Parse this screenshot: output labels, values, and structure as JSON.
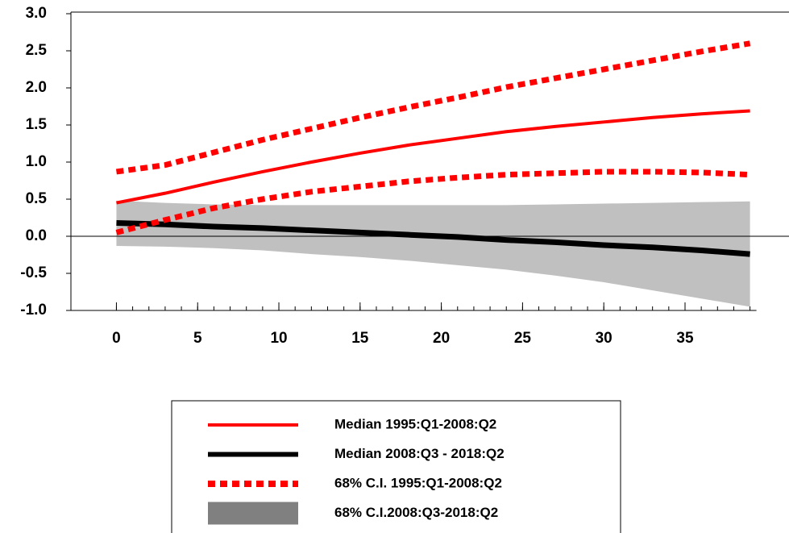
{
  "chart_data": {
    "type": "line",
    "x": [
      0,
      3,
      6,
      9,
      12,
      15,
      18,
      21,
      24,
      27,
      30,
      33,
      36,
      39
    ],
    "xlim": [
      -2.8,
      41.4
    ],
    "xticks": [
      0,
      5,
      10,
      15,
      20,
      25,
      30,
      35
    ],
    "ylim": [
      -1,
      3
    ],
    "yticks": [
      {
        "value": -1,
        "label": "-1.0"
      },
      -0.5,
      {
        "value": 0,
        "label": "0.0"
      },
      0.5,
      {
        "value": 1,
        "label": "1.0"
      },
      1.5,
      {
        "value": 2,
        "label": "2.0"
      },
      2.5,
      {
        "value": 3,
        "label": "3.0"
      }
    ],
    "legend_position": "bottom",
    "series": [
      {
        "name": "Median 1995:Q1-2008:Q2",
        "color": "#ff0000",
        "style": "solid",
        "values": [
          0.45,
          0.58,
          0.73,
          0.87,
          1.0,
          1.12,
          1.23,
          1.32,
          1.41,
          1.48,
          1.54,
          1.6,
          1.65,
          1.69
        ]
      },
      {
        "name": "Median 2008:Q3 - 2018:Q2",
        "color": "#000000",
        "style": "solid",
        "values": [
          0.18,
          0.16,
          0.13,
          0.11,
          0.08,
          0.05,
          0.02,
          -0.01,
          -0.05,
          -0.08,
          -0.12,
          -0.15,
          -0.19,
          -0.24
        ]
      },
      {
        "name": "68% C.I. 1995:Q1-2008:Q2",
        "color": "#ff0000",
        "style": "dotted",
        "upper": [
          0.87,
          0.96,
          1.13,
          1.3,
          1.45,
          1.6,
          1.74,
          1.87,
          2.01,
          2.13,
          2.25,
          2.37,
          2.49,
          2.6
        ],
        "lower": [
          0.05,
          0.22,
          0.38,
          0.5,
          0.6,
          0.67,
          0.74,
          0.79,
          0.83,
          0.85,
          0.87,
          0.87,
          0.86,
          0.83
        ]
      },
      {
        "name": "68% C.I.2008:Q3-2018:Q2",
        "color": "#c0c0c0",
        "legend_color": "#808080",
        "style": "band",
        "upper": [
          0.48,
          0.45,
          0.43,
          0.42,
          0.42,
          0.42,
          0.42,
          0.42,
          0.42,
          0.43,
          0.44,
          0.45,
          0.46,
          0.47
        ],
        "lower": [
          -0.13,
          -0.14,
          -0.16,
          -0.19,
          -0.24,
          -0.28,
          -0.33,
          -0.39,
          -0.45,
          -0.53,
          -0.62,
          -0.73,
          -0.84,
          -0.95
        ]
      }
    ]
  }
}
